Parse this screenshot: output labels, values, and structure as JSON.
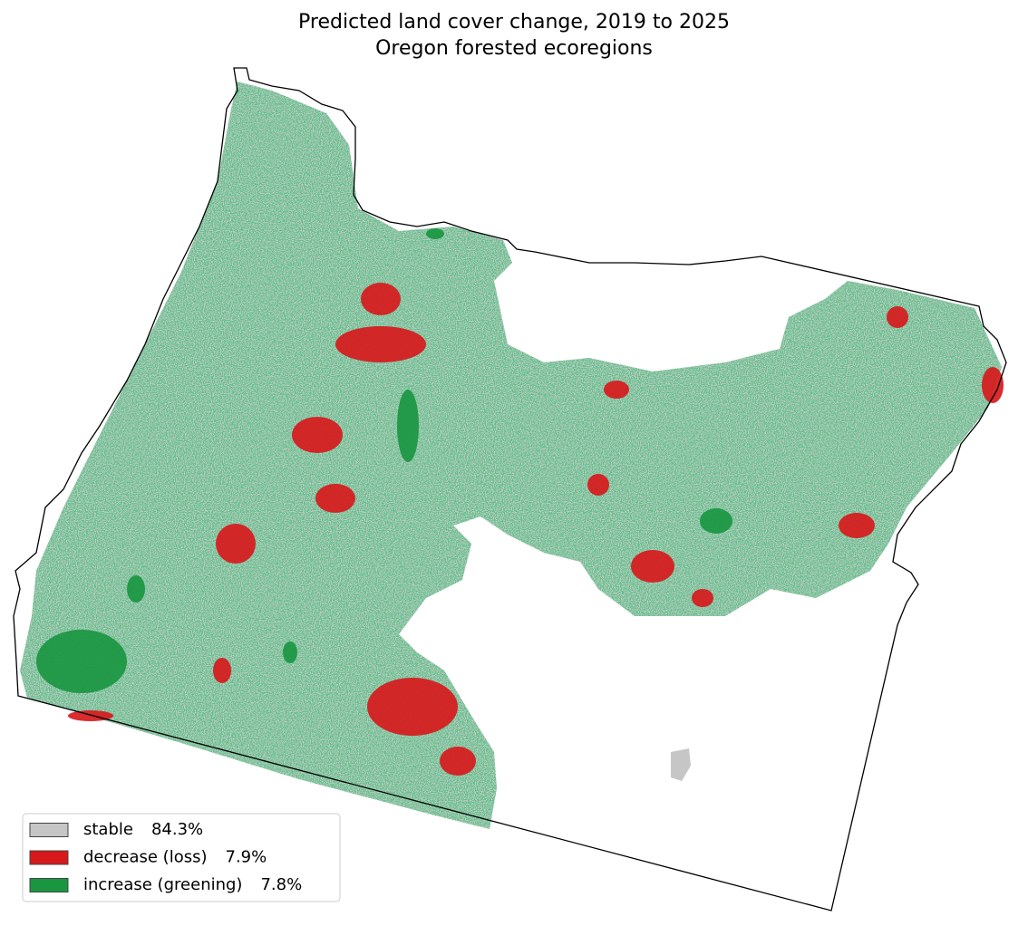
{
  "map": {
    "title": "Predicted land cover change, 2019 to 2025",
    "subtitle": "Oregon forested ecoregions",
    "legend": [
      {
        "name": "stable",
        "percent": "84.3%",
        "color": "#c6c6c6"
      },
      {
        "name": "decrease (loss)",
        "percent": "7.9%",
        "color": "#d7191c"
      },
      {
        "name": "increase (greening)",
        "percent": "7.8%",
        "color": "#1a9641"
      }
    ]
  }
}
